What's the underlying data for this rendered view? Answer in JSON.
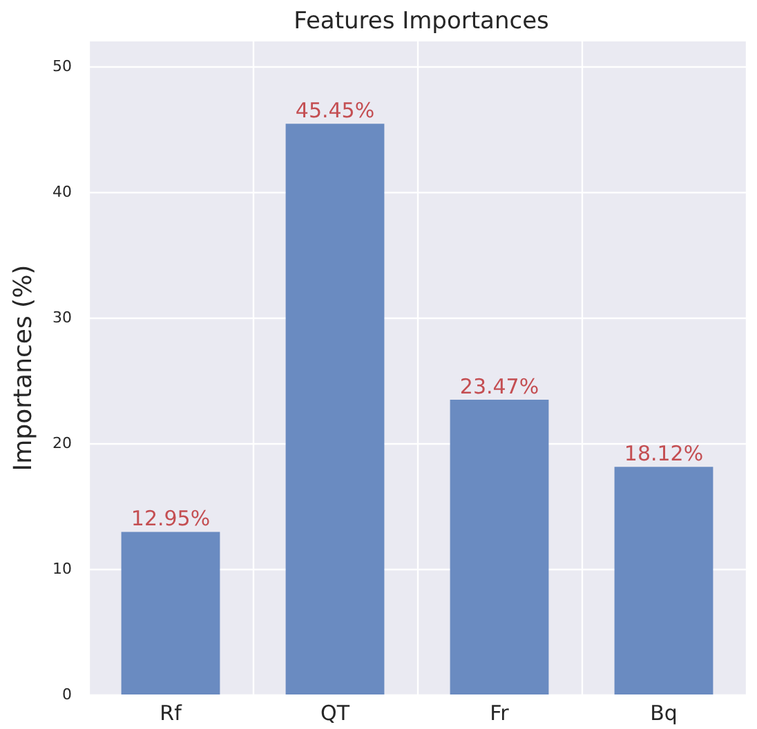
{
  "chart_data": {
    "type": "bar",
    "title": "Features Importances",
    "ylabel": "Importances (%)",
    "categories": [
      "Rf",
      "QT",
      "Fr",
      "Bq"
    ],
    "values": [
      12.95,
      45.45,
      23.47,
      18.12
    ],
    "value_labels": [
      "12.95%",
      "45.45%",
      "23.47%",
      "18.12%"
    ],
    "color": "#6a8bc1",
    "ylim": [
      0,
      52
    ],
    "yticks": [
      0,
      10,
      20,
      30,
      40,
      50
    ],
    "grid": true
  }
}
